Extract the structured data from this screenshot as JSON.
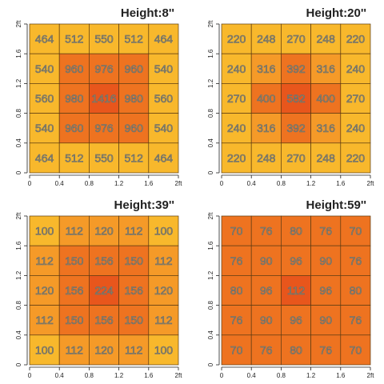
{
  "chart_data": [
    {
      "type": "heatmap",
      "title": "Height:8''",
      "x_ticks": [
        "0",
        "0.4",
        "0.8",
        "1.2",
        "1.6",
        "2ft"
      ],
      "y_ticks": [
        "0",
        "0.4",
        "0.8",
        "1.2",
        "1.6",
        "2ft"
      ],
      "xlim": [
        0,
        2
      ],
      "ylim": [
        0,
        2
      ],
      "grid": [
        [
          464,
          512,
          550,
          512,
          464
        ],
        [
          540,
          960,
          976,
          960,
          540
        ],
        [
          560,
          980,
          1416,
          980,
          560
        ],
        [
          540,
          960,
          976,
          960,
          540
        ],
        [
          464,
          512,
          550,
          512,
          464
        ]
      ]
    },
    {
      "type": "heatmap",
      "title": "Height:20''",
      "x_ticks": [
        "0",
        "0.4",
        "0.8",
        "1.2",
        "1.6",
        "2ft"
      ],
      "y_ticks": [
        "0",
        "0.4",
        "0.8",
        "1.2",
        "1.6",
        "2ft"
      ],
      "xlim": [
        0,
        2
      ],
      "ylim": [
        0,
        2
      ],
      "grid": [
        [
          220,
          248,
          270,
          248,
          220
        ],
        [
          240,
          316,
          392,
          316,
          240
        ],
        [
          270,
          400,
          582,
          400,
          270
        ],
        [
          240,
          316,
          392,
          316,
          240
        ],
        [
          220,
          248,
          270,
          248,
          220
        ]
      ]
    },
    {
      "type": "heatmap",
      "title": "Height:39''",
      "x_ticks": [
        "0",
        "0.4",
        "0.8",
        "1.2",
        "1.6",
        "2ft"
      ],
      "y_ticks": [
        "0",
        "0.4",
        "0.8",
        "1.2",
        "1.6",
        "2ft"
      ],
      "xlim": [
        0,
        2
      ],
      "ylim": [
        0,
        2
      ],
      "grid": [
        [
          100,
          112,
          120,
          112,
          100
        ],
        [
          112,
          150,
          156,
          150,
          112
        ],
        [
          120,
          156,
          224,
          156,
          120
        ],
        [
          112,
          150,
          156,
          150,
          112
        ],
        [
          100,
          112,
          120,
          112,
          100
        ]
      ]
    },
    {
      "type": "heatmap",
      "title": "Height:59''",
      "x_ticks": [
        "0",
        "0.4",
        "0.8",
        "1.2",
        "1.6",
        "2ft"
      ],
      "y_ticks": [
        "0",
        "0.4",
        "0.8",
        "1.2",
        "1.6",
        "2ft"
      ],
      "xlim": [
        0,
        2
      ],
      "ylim": [
        0,
        2
      ],
      "grid": [
        [
          70,
          76,
          80,
          76,
          70
        ],
        [
          76,
          90,
          96,
          90,
          76
        ],
        [
          80,
          96,
          112,
          96,
          80
        ],
        [
          76,
          90,
          96,
          90,
          76
        ],
        [
          70,
          76,
          80,
          76,
          70
        ]
      ]
    }
  ],
  "colors": {
    "low": "#f8b82c",
    "mid": "#f59a28",
    "high": "#ee7320",
    "peak": "#e8561c",
    "gridline": "#5b3b12"
  }
}
